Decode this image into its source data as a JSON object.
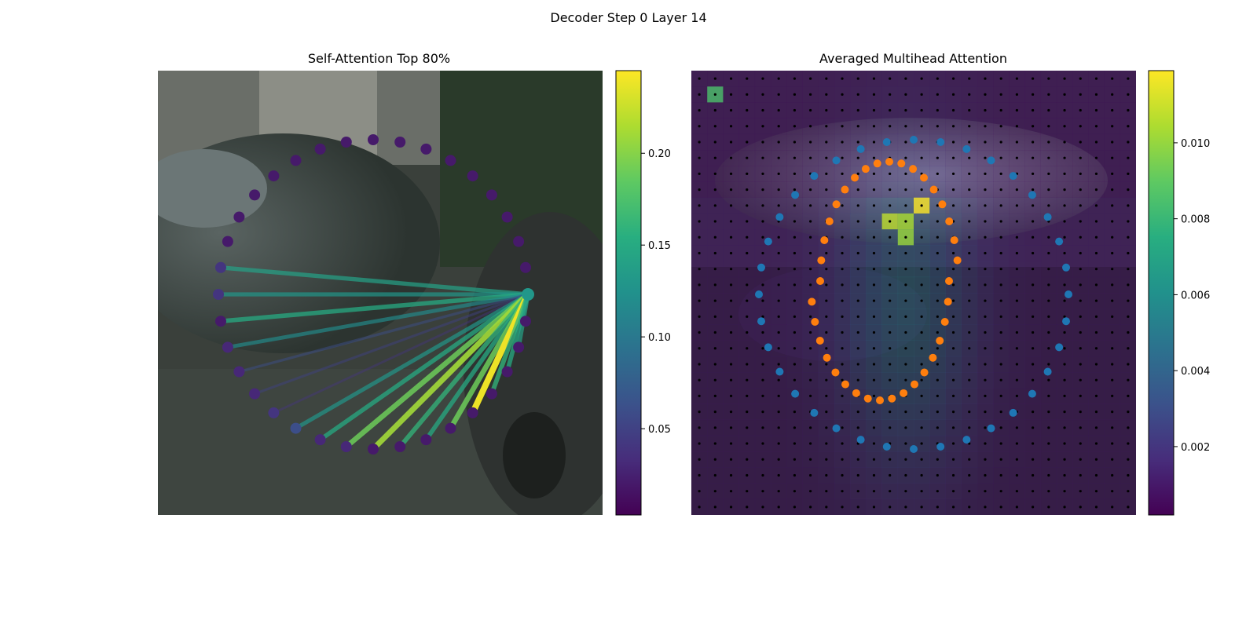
{
  "suptitle": "Decoder Step 0 Layer 14",
  "chart_data": [
    {
      "type": "scatter",
      "title": "Self-Attention Top 80%",
      "background": "dark photo of parked cars on a street",
      "colormap": "viridis",
      "colorbar": {
        "range": [
          0.003,
          0.245
        ],
        "ticks": [
          0.05,
          0.1,
          0.15,
          0.2
        ],
        "tick_labels": [
          "0.05",
          "0.10",
          "0.15",
          "0.20"
        ]
      },
      "points": {
        "count": 36,
        "layout": "ring",
        "query_index": 0
      },
      "attention_weights": [
        0.13,
        0.02,
        0.02,
        0.02,
        0.02,
        0.02,
        0.02,
        0.02,
        0.02,
        0.02,
        0.02,
        0.02,
        0.02,
        0.02,
        0.02,
        0.02,
        0.02,
        0.04,
        0.04,
        0.02,
        0.03,
        0.03,
        0.03,
        0.04,
        0.06,
        0.03,
        0.03,
        0.02,
        0.02,
        0.02,
        0.02,
        0.02,
        0.02,
        0.02,
        0.02,
        0.02
      ],
      "link_weights": [
        0,
        0,
        0,
        0,
        0,
        0,
        0,
        0,
        0,
        0,
        0,
        0,
        0,
        0,
        0,
        0,
        0,
        0.14,
        0.13,
        0.15,
        0.12,
        0.06,
        0.05,
        0.04,
        0.13,
        0.15,
        0.19,
        0.21,
        0.16,
        0.15,
        0.19,
        0.24,
        0.16,
        0.15,
        0.14,
        0
      ]
    },
    {
      "type": "heatmap",
      "title": "Averaged Multihead Attention",
      "colormap": "viridis",
      "colorbar": {
        "range": [
          0.0002,
          0.0119
        ],
        "ticks": [
          0.002,
          0.004,
          0.006,
          0.008,
          0.01
        ],
        "tick_labels": [
          "0.002",
          "0.004",
          "0.006",
          "0.008",
          "0.010"
        ]
      },
      "grid": {
        "rows": 28,
        "cols": 28
      },
      "hotspots": [
        {
          "row": 1,
          "col": 1,
          "value": 0.0085
        },
        {
          "row": 9,
          "col": 12,
          "value": 0.0108
        },
        {
          "row": 9,
          "col": 13,
          "value": 0.0104
        },
        {
          "row": 8,
          "col": 14,
          "value": 0.0119
        },
        {
          "row": 10,
          "col": 13,
          "value": 0.0101
        }
      ],
      "series": [
        {
          "color": "#1f77b4",
          "count": 36
        },
        {
          "color": "#ff7f0e",
          "count": 36
        }
      ]
    }
  ]
}
